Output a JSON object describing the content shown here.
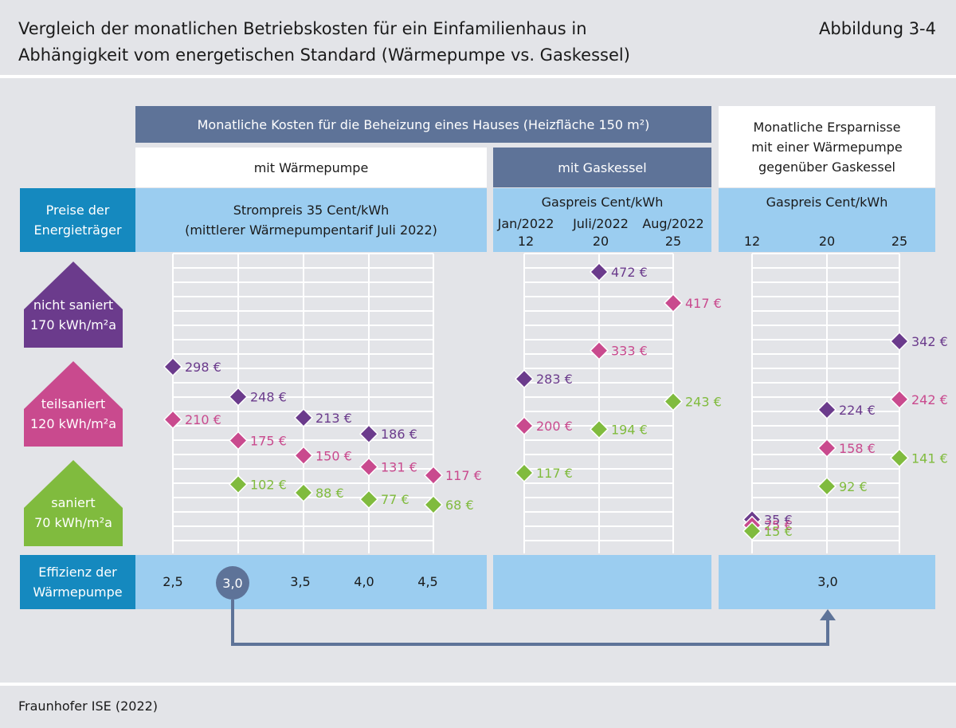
{
  "header": {
    "title_line1": "Vergleich der monatlichen Betriebskosten für ein Einfamilienhaus in",
    "title_line2": "Abhängigkeit vom energetischen Standard (Wärmepumpe vs. Gaskessel)",
    "figure_number": "Abbildung 3-4"
  },
  "source": "Fraunhofer ISE (2022)",
  "table_headers": {
    "monthly_costs": "Monatliche Kosten für die Beheizung eines Hauses (Heizfläche 150 m²)",
    "heat_pump": "mit Wärmepumpe",
    "gas_boiler": "mit Gaskessel",
    "savings_line1": "Monatliche Ersparnisse",
    "savings_line2": "mit einer Wärmepumpe",
    "savings_line3": "gegenüber Gaskessel",
    "energy_prices_line1": "Preise der",
    "energy_prices_line2": "Energieträger",
    "electricity_price_line1": "Strompreis 35 Cent/kWh",
    "electricity_price_line2": "(mittlerer Wärmepumpentarif Juli 2022)",
    "gas_price": "Gaspreis Cent/kWh",
    "gas_price_savings": "Gaspreis Cent/kWh",
    "efficiency_line1": "Effizienz der",
    "efficiency_line2": "Wärmepumpe"
  },
  "house_categories": [
    {
      "line1": "nicht saniert",
      "line2": "170 kWh/m²a",
      "color": "#6b3b8c"
    },
    {
      "line1": "teilsaniert",
      "line2": "120 kWh/m²a",
      "color": "#c94a8e"
    },
    {
      "line1": "saniert",
      "line2": "70 kWh/m²a",
      "color": "#80bb3e"
    }
  ],
  "gas_columns": [
    {
      "date": "Jan/2022",
      "price": "12"
    },
    {
      "date": "Juli/2022",
      "price": "20"
    },
    {
      "date": "Aug/2022",
      "price": "25"
    }
  ],
  "savings_columns": [
    "12",
    "20",
    "25"
  ],
  "efficiency_values": [
    "2,5",
    "3,0",
    "3,5",
    "4,0",
    "4,5"
  ],
  "efficiency_highlight": "3,0",
  "savings_efficiency": "3,0",
  "colors": {
    "nicht_saniert": "#6b3b8c",
    "teilsaniert": "#c94a8e",
    "saniert": "#80bb3e",
    "dark_header": "#5e7398",
    "light_blue": "#9bcdf0",
    "teal": "#1589bf"
  },
  "chart_data": [
    {
      "type": "scatter",
      "title": "mit Wärmepumpe",
      "xlabel": "Effizienz der Wärmepumpe",
      "categories": [
        "2,5",
        "3,0",
        "3,5",
        "4,0",
        "4,5"
      ],
      "unit": "€",
      "series": [
        {
          "name": "nicht saniert",
          "values": [
            298,
            248,
            213,
            186,
            null
          ]
        },
        {
          "name": "teilsaniert",
          "values": [
            210,
            175,
            150,
            131,
            117
          ]
        },
        {
          "name": "saniert",
          "values": [
            null,
            102,
            88,
            77,
            68
          ]
        }
      ]
    },
    {
      "type": "scatter",
      "title": "mit Gaskessel",
      "xlabel": "Gaspreis Cent/kWh",
      "categories": [
        "12",
        "20",
        "25"
      ],
      "unit": "€",
      "series": [
        {
          "name": "nicht saniert",
          "values": [
            283,
            472,
            null
          ]
        },
        {
          "name": "teilsaniert",
          "values": [
            200,
            333,
            417
          ]
        },
        {
          "name": "saniert",
          "values": [
            117,
            194,
            243
          ]
        }
      ]
    },
    {
      "type": "scatter",
      "title": "Monatliche Ersparnisse mit einer Wärmepumpe gegenüber Gaskessel",
      "xlabel": "Gaspreis Cent/kWh",
      "categories": [
        "12",
        "20",
        "25"
      ],
      "unit": "€",
      "series": [
        {
          "name": "nicht saniert",
          "values": [
            35,
            224,
            342
          ]
        },
        {
          "name": "teilsaniert",
          "values": [
            25,
            158,
            242
          ]
        },
        {
          "name": "saniert",
          "values": [
            15,
            92,
            141
          ]
        }
      ]
    }
  ]
}
